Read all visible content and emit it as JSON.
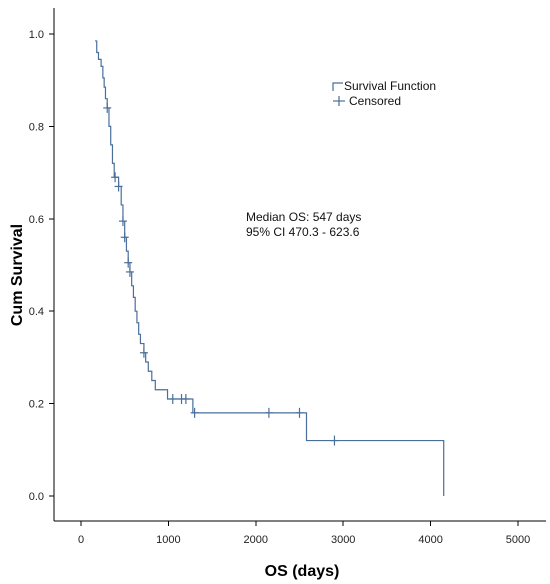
{
  "chart_data": {
    "type": "line",
    "xlabel": "OS (days)",
    "ylabel": "Cum Survival",
    "xlim": [
      0,
      5000
    ],
    "ylim": [
      0.0,
      1.0
    ],
    "x_ticks": [
      0,
      1000,
      2000,
      3000,
      4000,
      5000
    ],
    "x_tick_labels": [
      "0",
      "1000",
      "2000",
      "3000",
      "4000",
      "5000"
    ],
    "y_ticks": [
      0.0,
      0.2,
      0.4,
      0.6,
      0.8,
      1.0
    ],
    "y_tick_labels": [
      "0.0",
      "0.2",
      "0.4",
      "0.6",
      "0.8",
      "1.0"
    ],
    "grid": false,
    "legend_position": "top-right",
    "series_color": "#4a6f9a",
    "series": [
      {
        "name": "Survival Function",
        "style": "step",
        "points": [
          [
            160,
            0.985
          ],
          [
            180,
            0.96
          ],
          [
            200,
            0.945
          ],
          [
            230,
            0.93
          ],
          [
            250,
            0.905
          ],
          [
            265,
            0.885
          ],
          [
            280,
            0.86
          ],
          [
            300,
            0.84
          ],
          [
            320,
            0.8
          ],
          [
            340,
            0.76
          ],
          [
            360,
            0.72
          ],
          [
            380,
            0.69
          ],
          [
            430,
            0.67
          ],
          [
            460,
            0.63
          ],
          [
            480,
            0.595
          ],
          [
            500,
            0.56
          ],
          [
            520,
            0.53
          ],
          [
            540,
            0.505
          ],
          [
            560,
            0.485
          ],
          [
            580,
            0.455
          ],
          [
            600,
            0.43
          ],
          [
            620,
            0.4
          ],
          [
            640,
            0.375
          ],
          [
            660,
            0.35
          ],
          [
            680,
            0.33
          ],
          [
            720,
            0.31
          ],
          [
            740,
            0.29
          ],
          [
            770,
            0.27
          ],
          [
            810,
            0.25
          ],
          [
            850,
            0.23
          ],
          [
            990,
            0.21
          ],
          [
            1280,
            0.18
          ],
          [
            2580,
            0.12
          ],
          [
            4150,
            0.0
          ]
        ],
        "end_x": 4150
      },
      {
        "name": "Censored",
        "style": "marker",
        "marker": "+",
        "points": [
          [
            300,
            0.84
          ],
          [
            390,
            0.69
          ],
          [
            430,
            0.67
          ],
          [
            480,
            0.595
          ],
          [
            500,
            0.56
          ],
          [
            540,
            0.505
          ],
          [
            560,
            0.485
          ],
          [
            720,
            0.31
          ],
          [
            1050,
            0.21
          ],
          [
            1150,
            0.21
          ],
          [
            1200,
            0.21
          ],
          [
            1300,
            0.18
          ],
          [
            2150,
            0.18
          ],
          [
            2500,
            0.18
          ],
          [
            2900,
            0.12
          ]
        ]
      }
    ],
    "annotations": [
      "Median OS: 547 days",
      "95% CI 470.3 - 623.6"
    ]
  }
}
